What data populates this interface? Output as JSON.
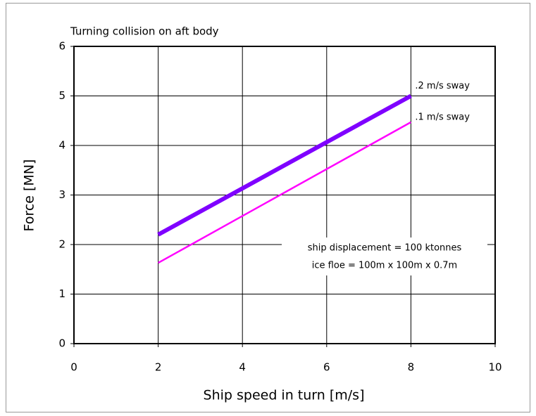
{
  "chart_data": {
    "type": "line",
    "title": "Turning collision on aft body",
    "xlabel": "Ship speed in turn [m/s]",
    "ylabel": "Force [MN]",
    "x": [
      2,
      8
    ],
    "series": [
      {
        "name": ".2 m/s sway",
        "color": "#7f00ff",
        "values": [
          2.2,
          5.0
        ]
      },
      {
        "name": ".1 m/s sway",
        "color": "#ff00ff",
        "values": [
          1.63,
          4.47
        ]
      }
    ],
    "annotations": [
      "ship displacement = 100 ktonnes",
      "ice floe = 100m x 100m x 0.7m"
    ],
    "xlim": [
      0,
      10
    ],
    "xticks": [
      0,
      2,
      4,
      6,
      8,
      10
    ],
    "ylim": [
      0,
      6
    ],
    "yticks": [
      0,
      1,
      2,
      3,
      4,
      5,
      6
    ],
    "grid": true
  }
}
